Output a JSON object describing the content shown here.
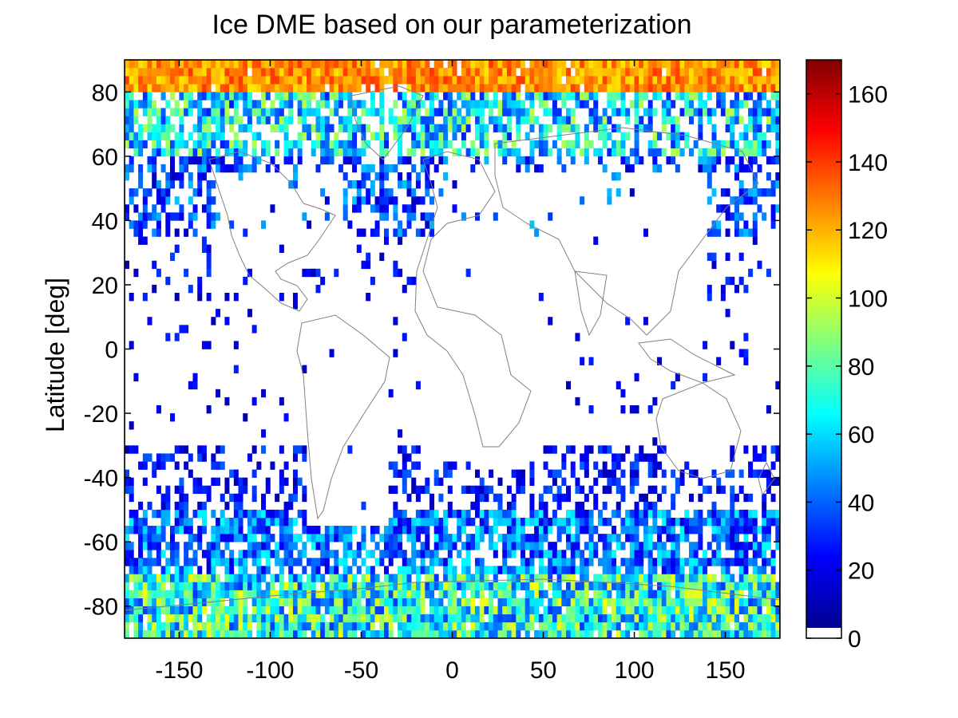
{
  "chart_data": {
    "type": "heatmap",
    "title": "Ice DME based on our parameterization",
    "xlabel": "",
    "ylabel": "Latitude [deg]",
    "xlim": [
      -180,
      180
    ],
    "ylim": [
      -90,
      90
    ],
    "x_ticks": [
      -150,
      -100,
      -50,
      0,
      50,
      100,
      150
    ],
    "y_ticks": [
      -80,
      -60,
      -40,
      -20,
      0,
      20,
      40,
      60,
      80
    ],
    "grid": false,
    "colormap": "jet",
    "colorbar": {
      "range": [
        0,
        170
      ],
      "ticks": [
        0,
        20,
        40,
        60,
        80,
        100,
        120,
        140,
        160
      ],
      "zero_color": "#ffffff",
      "placement": "right"
    },
    "overlay": "coastlines",
    "description_regions": [
      {
        "lat": [
          78,
          90
        ],
        "lon": [
          -180,
          180
        ],
        "typical_value": 125
      },
      {
        "lat": [
          55,
          78
        ],
        "lon": [
          -180,
          180
        ],
        "typical_value": 60
      },
      {
        "lat": [
          30,
          55
        ],
        "lon": [
          -180,
          180
        ],
        "typical_value": 25
      },
      {
        "lat": [
          -55,
          -30
        ],
        "lon": [
          -180,
          180
        ],
        "typical_value": 20
      },
      {
        "lat": [
          -70,
          -55
        ],
        "lon": [
          -180,
          180
        ],
        "typical_value": 40
      },
      {
        "lat": [
          -90,
          -70
        ],
        "lon": [
          -180,
          180
        ],
        "typical_value": 80
      }
    ]
  }
}
